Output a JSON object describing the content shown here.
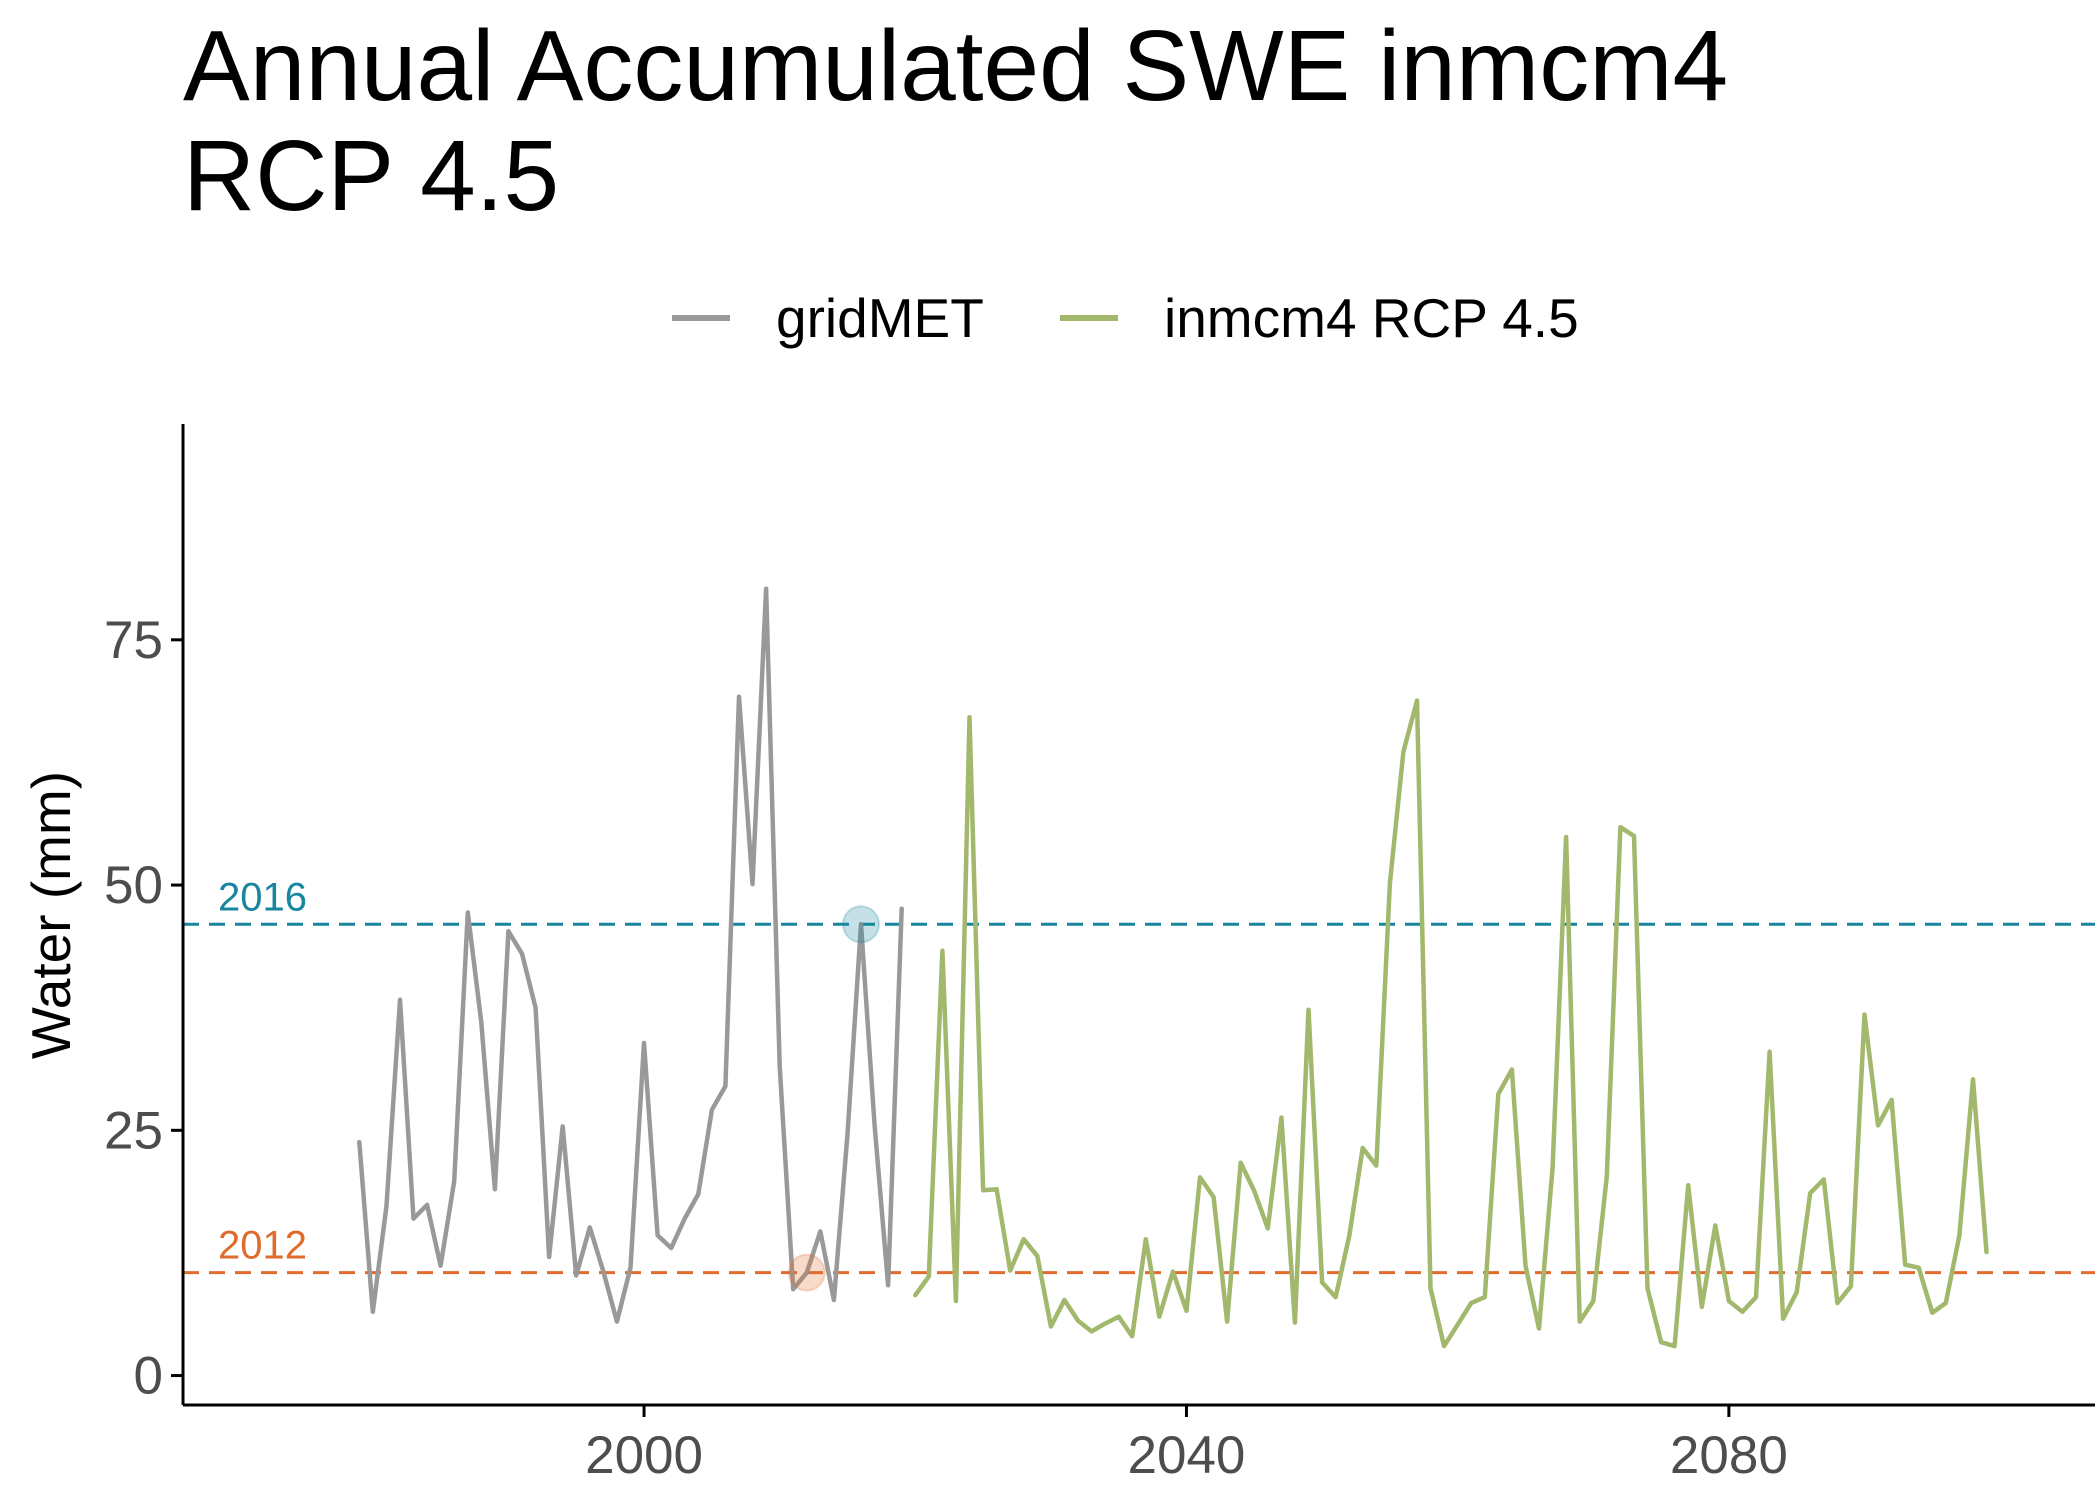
{
  "chart_data": {
    "type": "line",
    "title": "Annual Accumulated SWE inmcm4\nRCP 4.5",
    "title_lines": [
      "Annual Accumulated SWE inmcm4",
      "RCP 4.5"
    ],
    "xlabel": "",
    "ylabel": "Water (mm)",
    "xlim": [
      1966,
      2107
    ],
    "ylim": [
      -3,
      97
    ],
    "x_ticks": [
      2000,
      2040,
      2080
    ],
    "y_ticks": [
      0,
      25,
      50,
      75
    ],
    "grid": false,
    "legend_position": "top",
    "series": [
      {
        "name": "gridMET",
        "color": "#999999",
        "x": [
          1979,
          1980,
          1981,
          1982,
          1983,
          1984,
          1985,
          1986,
          1987,
          1988,
          1989,
          1990,
          1991,
          1992,
          1993,
          1994,
          1995,
          1996,
          1997,
          1998,
          1999,
          2000,
          2001,
          2002,
          2003,
          2004,
          2005,
          2006,
          2007,
          2008,
          2009,
          2010,
          2011,
          2012,
          2013,
          2014,
          2015,
          2016,
          2017,
          2018,
          2019
        ],
        "y": [
          23.8,
          6.5,
          17.2,
          38.3,
          16.0,
          17.4,
          11.2,
          19.8,
          47.2,
          36.0,
          19.0,
          45.3,
          43.0,
          37.5,
          12.1,
          25.4,
          10.2,
          15.1,
          10.6,
          5.5,
          11.0,
          33.9,
          14.3,
          13.0,
          16.0,
          18.5,
          27.1,
          29.5,
          69.2,
          50.1,
          80.2,
          31.5,
          8.8,
          10.5,
          14.7,
          7.7,
          24.6,
          46.0,
          25.5,
          9.2,
          47.6
        ]
      },
      {
        "name": "inmcm4 RCP 4.5",
        "color": "#a2b86c",
        "x": [
          2020,
          2021,
          2022,
          2023,
          2024,
          2025,
          2026,
          2027,
          2028,
          2029,
          2030,
          2031,
          2032,
          2033,
          2034,
          2035,
          2036,
          2037,
          2038,
          2039,
          2040,
          2041,
          2042,
          2043,
          2044,
          2045,
          2046,
          2047,
          2048,
          2049,
          2050,
          2051,
          2052,
          2053,
          2054,
          2055,
          2056,
          2057,
          2058,
          2059,
          2060,
          2061,
          2062,
          2063,
          2064,
          2065,
          2066,
          2067,
          2068,
          2069,
          2070,
          2071,
          2072,
          2073,
          2074,
          2075,
          2076,
          2077,
          2078,
          2079,
          2080,
          2081,
          2082,
          2083,
          2084,
          2085,
          2086,
          2087,
          2088,
          2089,
          2090,
          2091,
          2092,
          2093,
          2094,
          2095,
          2096,
          2097,
          2098,
          2099
        ],
        "y": [
          8.2,
          10.1,
          43.3,
          7.6,
          67.1,
          18.9,
          19.0,
          10.7,
          13.9,
          12.2,
          5.0,
          7.7,
          5.6,
          4.5,
          5.3,
          6.0,
          4.0,
          13.9,
          6.0,
          10.6,
          6.6,
          20.2,
          18.2,
          5.5,
          21.7,
          18.8,
          15.0,
          26.3,
          5.4,
          37.3,
          9.5,
          8.0,
          14.2,
          23.2,
          21.4,
          50.2,
          63.6,
          68.8,
          8.9,
          3.0,
          5.2,
          7.4,
          8.0,
          28.7,
          31.2,
          11.2,
          4.8,
          21.2,
          54.9,
          5.5,
          7.6,
          20.3,
          55.9,
          55.0,
          8.9,
          3.4,
          3.0,
          19.4,
          7.0,
          15.3,
          7.6,
          6.5,
          8.0,
          33.0,
          5.8,
          8.5,
          18.6,
          20.0,
          7.4,
          9.1,
          36.8,
          25.5,
          28.1,
          11.3,
          11.0,
          6.4,
          7.4,
          14.3,
          30.2,
          12.6
        ]
      }
    ],
    "reference_lines": [
      {
        "label": "2016",
        "y": 46.0,
        "color": "#17869e"
      },
      {
        "label": "2012",
        "y": 10.5,
        "color": "#e06b2c"
      }
    ],
    "highlight_points": [
      {
        "x": 2016,
        "y": 46.0,
        "color": "#17869e"
      },
      {
        "x": 2012,
        "y": 10.5,
        "color": "#e06b2c"
      }
    ]
  }
}
